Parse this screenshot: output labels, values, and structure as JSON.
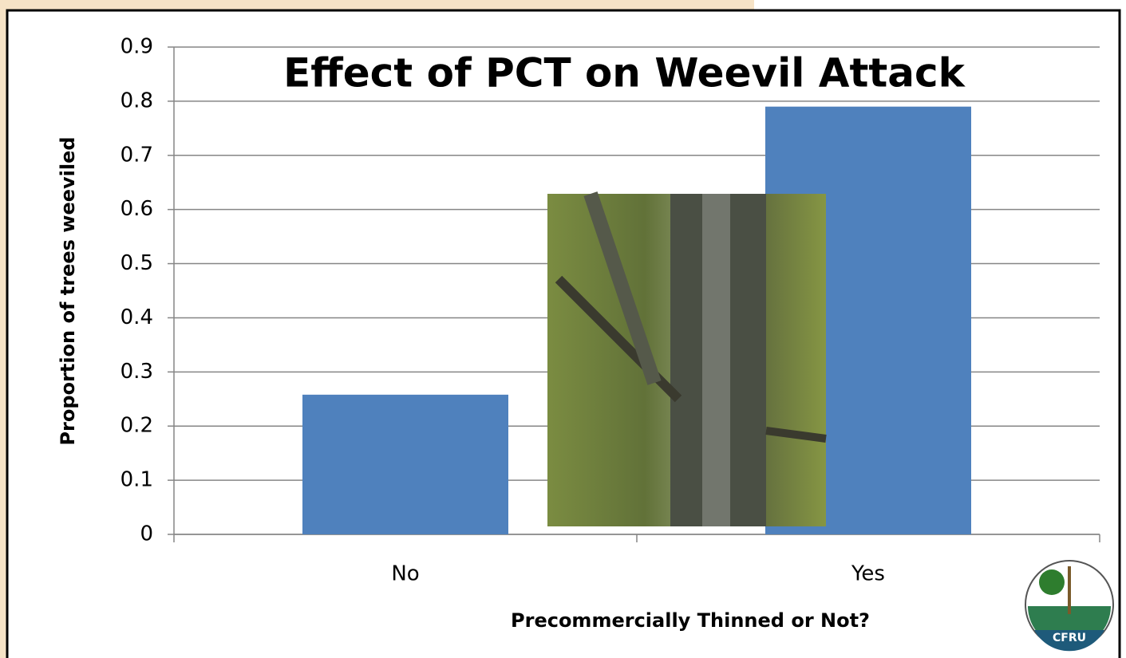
{
  "chart_data": {
    "type": "bar",
    "title": "Effect of PCT on Weevil Attack",
    "y_label": "Proportion of trees weeviled",
    "x_label": "Precommercially Thinned or Not?",
    "categories": [
      "No",
      "Yes"
    ],
    "values": [
      0.258,
      0.79
    ],
    "color": "#4f81bd",
    "ylim": [
      0,
      0.9
    ],
    "yticks": [
      0,
      0.1,
      0.2,
      0.3,
      0.4,
      0.5,
      0.6,
      0.7,
      0.8,
      0.9
    ],
    "grid": true
  },
  "logo": {
    "text": "CFRU"
  }
}
